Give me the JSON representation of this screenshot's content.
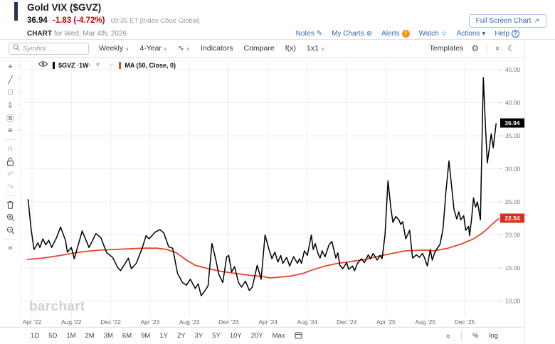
{
  "header": {
    "title": "Gold VIX ($GVZ)",
    "price": "36.94",
    "change": "-1.83 (-4.72%)",
    "meta": "09:35 ET [Index Cboe Global]",
    "chart_label": "CHART",
    "chart_for": "for Wed, Mar 4th, 2026",
    "full_screen_label": "Full Screen Chart",
    "full_screen_icon": "↗",
    "links": [
      {
        "label": "Notes",
        "icon": "✎",
        "style": "plain"
      },
      {
        "label": "My Charts",
        "icon": "⊕",
        "style": "plain"
      },
      {
        "label": "Alerts",
        "icon": "!",
        "style": "badge"
      },
      {
        "label": "Watch",
        "icon": "☆",
        "style": "plain"
      },
      {
        "label": "Actions",
        "icon": "▾",
        "style": "plain"
      },
      {
        "label": "Help",
        "icon": "?",
        "style": "circle"
      }
    ]
  },
  "toolbar": {
    "search_placeholder": "Symbol...",
    "frequency": "Weekly",
    "range": "4-Year",
    "chart_type_icon": "∿",
    "indicators": "Indicators",
    "compare": "Compare",
    "fx": "f(x)",
    "layout": "1x1",
    "templates": "Templates",
    "gear_icon": "⚙",
    "collapse_icon": "«",
    "moon_icon": "☾"
  },
  "sidebar_tools": [
    {
      "name": "crosshair-tool",
      "glyph": "⌖",
      "sub": true
    },
    {
      "name": "trendline-tool",
      "glyph": "╱",
      "sub": true
    },
    {
      "name": "shapes-tool",
      "glyph": "□",
      "sub": true
    },
    {
      "name": "arrow-annotation-tool",
      "glyph": "⇩",
      "sub": true
    },
    {
      "name": "text-annotation-tool",
      "glyph": "Ⓑ",
      "sub": true
    },
    {
      "name": "line-settings-tool",
      "glyph": "≡",
      "sub": true
    },
    {
      "divider": true
    },
    {
      "name": "magnet-tool",
      "glyph": "∩",
      "active": true
    },
    {
      "name": "lock-tool",
      "svg": "lock"
    },
    {
      "name": "undo-button",
      "glyph": "↶",
      "disabled": true
    },
    {
      "name": "redo-button",
      "glyph": "↷",
      "disabled": true
    },
    {
      "divider": true
    },
    {
      "name": "delete-drawings-button",
      "svg": "trash"
    },
    {
      "name": "zoom-in-button",
      "svg": "zoom-in"
    },
    {
      "name": "zoom-out-button",
      "svg": "zoom-out"
    },
    {
      "divider": true
    },
    {
      "name": "collapse-sidebar-button",
      "glyph": "«"
    }
  ],
  "legend": {
    "series1_label": "$GVZ ·1W·",
    "series2_label": "MA (50, Close, 0)",
    "dots": "⋯",
    "close": "×"
  },
  "watermark": "barchart",
  "period_buttons": [
    "1D",
    "5D",
    "1M",
    "2M",
    "3M",
    "6M",
    "9M",
    "1Y",
    "2Y",
    "3Y",
    "5Y",
    "10Y",
    "20Y",
    "Max"
  ],
  "bottom_right": {
    "percent": "%",
    "log": "log"
  },
  "colors": {
    "accent_navy": "#27335f",
    "red_change": "#c40000",
    "link_blue": "#3569ae",
    "alert_orange": "#f7941e",
    "series_black": "#000000",
    "series_red": "#e8432c",
    "badge_black": "#000000",
    "badge_red": "#da2f1d",
    "grid": "#ececec",
    "axis_text": "#777777",
    "magnet_active": "#5b6fd6"
  },
  "chart_data": {
    "type": "line",
    "title": "Gold VIX ($GVZ) weekly line with MA(50) overlay",
    "x_unit": "months since Apr 2022",
    "xlim": [
      -0.94,
      47.54
    ],
    "ylim": [
      7.8,
      46.3
    ],
    "grid": true,
    "y_ticks": [
      10,
      15,
      20,
      25,
      30,
      35,
      40,
      45
    ],
    "x_ticks": [
      {
        "m": 0,
        "label": "Apr '22"
      },
      {
        "m": 4,
        "label": "Aug '22"
      },
      {
        "m": 8,
        "label": "Dec '22"
      },
      {
        "m": 12,
        "label": "Apr '23"
      },
      {
        "m": 16,
        "label": "Aug '23"
      },
      {
        "m": 20,
        "label": "Dec '23"
      },
      {
        "m": 24,
        "label": "Apr '24"
      },
      {
        "m": 28,
        "label": "Aug '24"
      },
      {
        "m": 32,
        "label": "Dec '24"
      },
      {
        "m": 36,
        "label": "Apr '25"
      },
      {
        "m": 40,
        "label": "Aug '25"
      },
      {
        "m": 44,
        "label": "Dec '25"
      }
    ],
    "series": [
      {
        "name": "$GVZ weekly",
        "color": "#000000",
        "width": 1.5,
        "last_value": 36.94,
        "badge": {
          "text": "36.94",
          "bg": "#000000"
        },
        "points": [
          [
            -0.4,
            25.4
          ],
          [
            -0.1,
            21.0
          ],
          [
            0.2,
            17.8
          ],
          [
            0.6,
            18.8
          ],
          [
            0.8,
            18.1
          ],
          [
            1.1,
            19.4
          ],
          [
            1.4,
            18.5
          ],
          [
            1.7,
            19.2
          ],
          [
            2.0,
            18.1
          ],
          [
            2.5,
            19.6
          ],
          [
            2.9,
            21.2
          ],
          [
            3.4,
            19.2
          ],
          [
            3.6,
            17.4
          ],
          [
            4.0,
            18.1
          ],
          [
            4.3,
            16.4
          ],
          [
            5.1,
            20.6
          ],
          [
            5.8,
            18.1
          ],
          [
            6.5,
            20.2
          ],
          [
            7.0,
            19.6
          ],
          [
            7.6,
            17.3
          ],
          [
            8.2,
            16.6
          ],
          [
            8.7,
            15.1
          ],
          [
            9.0,
            14.6
          ],
          [
            9.4,
            15.5
          ],
          [
            9.8,
            16.5
          ],
          [
            10.1,
            14.9
          ],
          [
            10.6,
            15.7
          ],
          [
            11.2,
            18.0
          ],
          [
            11.6,
            19.9
          ],
          [
            11.9,
            19.4
          ],
          [
            12.5,
            20.4
          ],
          [
            13.0,
            20.8
          ],
          [
            13.4,
            20.3
          ],
          [
            13.9,
            18.2
          ],
          [
            14.3,
            18.0
          ],
          [
            14.8,
            14.2
          ],
          [
            15.3,
            12.8
          ],
          [
            15.7,
            12.4
          ],
          [
            16.1,
            13.3
          ],
          [
            16.6,
            11.9
          ],
          [
            16.9,
            12.6
          ],
          [
            17.2,
            10.8
          ],
          [
            17.6,
            11.6
          ],
          [
            17.9,
            12.3
          ],
          [
            18.3,
            18.7
          ],
          [
            18.7,
            16.2
          ],
          [
            19.0,
            14.0
          ],
          [
            19.4,
            12.8
          ],
          [
            19.8,
            16.7
          ],
          [
            20.0,
            16.9
          ],
          [
            20.3,
            14.4
          ],
          [
            20.6,
            15.2
          ],
          [
            21.0,
            12.8
          ],
          [
            21.3,
            12.1
          ],
          [
            21.7,
            13.0
          ],
          [
            22.1,
            11.6
          ],
          [
            22.4,
            12.1
          ],
          [
            22.9,
            15.4
          ],
          [
            23.3,
            13.3
          ],
          [
            23.7,
            20.0
          ],
          [
            24.1,
            17.8
          ],
          [
            24.4,
            16.4
          ],
          [
            24.7,
            17.4
          ],
          [
            25.0,
            15.9
          ],
          [
            25.3,
            16.9
          ],
          [
            25.5,
            15.7
          ],
          [
            25.9,
            16.6
          ],
          [
            26.2,
            15.3
          ],
          [
            26.6,
            16.7
          ],
          [
            27.0,
            15.7
          ],
          [
            27.2,
            16.4
          ],
          [
            27.4,
            15.7
          ],
          [
            27.7,
            17.6
          ],
          [
            28.0,
            16.9
          ],
          [
            28.4,
            20.0
          ],
          [
            28.6,
            17.8
          ],
          [
            28.8,
            18.7
          ],
          [
            29.1,
            17.1
          ],
          [
            29.3,
            16.5
          ],
          [
            29.5,
            17.6
          ],
          [
            29.8,
            16.7
          ],
          [
            30.2,
            18.5
          ],
          [
            30.5,
            19.0
          ],
          [
            30.9,
            16.5
          ],
          [
            31.1,
            17.3
          ],
          [
            31.3,
            15.4
          ],
          [
            31.6,
            14.9
          ],
          [
            32.0,
            15.8
          ],
          [
            32.2,
            14.8
          ],
          [
            32.6,
            15.3
          ],
          [
            32.8,
            14.6
          ],
          [
            33.1,
            15.7
          ],
          [
            33.5,
            16.4
          ],
          [
            33.8,
            15.8
          ],
          [
            34.2,
            17.0
          ],
          [
            34.4,
            16.4
          ],
          [
            34.7,
            17.2
          ],
          [
            35.1,
            16.2
          ],
          [
            35.4,
            16.9
          ],
          [
            35.6,
            16.4
          ],
          [
            35.9,
            20.0
          ],
          [
            36.2,
            28.2
          ],
          [
            36.5,
            24.0
          ],
          [
            36.7,
            21.9
          ],
          [
            37.0,
            22.8
          ],
          [
            37.3,
            22.3
          ],
          [
            37.5,
            21.6
          ],
          [
            37.7,
            22.0
          ],
          [
            38.0,
            19.4
          ],
          [
            38.4,
            20.7
          ],
          [
            38.7,
            16.5
          ],
          [
            39.1,
            17.0
          ],
          [
            39.4,
            16.6
          ],
          [
            39.7,
            17.2
          ],
          [
            39.9,
            16.6
          ],
          [
            40.2,
            15.3
          ],
          [
            40.5,
            17.8
          ],
          [
            40.7,
            16.2
          ],
          [
            41.0,
            17.5
          ],
          [
            41.5,
            18.6
          ],
          [
            41.8,
            21.0
          ],
          [
            42.1,
            26.7
          ],
          [
            42.4,
            31.2
          ],
          [
            42.8,
            25.5
          ],
          [
            42.9,
            23.9
          ],
          [
            43.2,
            22.4
          ],
          [
            43.4,
            23.5
          ],
          [
            43.6,
            22.3
          ],
          [
            43.9,
            22.9
          ],
          [
            44.1,
            20.7
          ],
          [
            44.4,
            21.3
          ],
          [
            44.5,
            19.9
          ],
          [
            44.7,
            22.5
          ],
          [
            44.9,
            25.6
          ],
          [
            45.1,
            24.2
          ],
          [
            45.3,
            25.0
          ],
          [
            45.6,
            22.3
          ],
          [
            45.7,
            30.0
          ],
          [
            45.9,
            43.8
          ],
          [
            46.1,
            36.8
          ],
          [
            46.3,
            30.9
          ],
          [
            46.7,
            35.3
          ],
          [
            46.9,
            33.2
          ],
          [
            47.2,
            36.9
          ]
        ]
      },
      {
        "name": "MA (50, Close, 0)",
        "color": "#e8432c",
        "width": 1.8,
        "last_value": 22.54,
        "badge": {
          "text": "22.54",
          "bg": "#da2f1d"
        },
        "points": [
          [
            -0.5,
            16.3
          ],
          [
            1.1,
            16.5
          ],
          [
            2.9,
            16.9
          ],
          [
            4.0,
            17.2
          ],
          [
            5.4,
            17.5
          ],
          [
            6.9,
            17.7
          ],
          [
            8.3,
            17.8
          ],
          [
            9.8,
            17.9
          ],
          [
            11.2,
            18.0
          ],
          [
            12.7,
            18.0
          ],
          [
            13.7,
            17.8
          ],
          [
            14.7,
            17.3
          ],
          [
            15.6,
            16.3
          ],
          [
            16.6,
            15.4
          ],
          [
            17.9,
            14.9
          ],
          [
            19.2,
            14.5
          ],
          [
            20.6,
            14.2
          ],
          [
            22.1,
            13.9
          ],
          [
            23.5,
            13.7
          ],
          [
            24.2,
            13.5
          ],
          [
            25.0,
            13.6
          ],
          [
            26.4,
            13.8
          ],
          [
            27.6,
            14.2
          ],
          [
            28.5,
            14.7
          ],
          [
            29.8,
            15.3
          ],
          [
            31.1,
            15.7
          ],
          [
            32.5,
            16.0
          ],
          [
            33.9,
            16.3
          ],
          [
            35.3,
            16.8
          ],
          [
            36.6,
            17.2
          ],
          [
            38.0,
            17.6
          ],
          [
            39.8,
            17.7
          ],
          [
            40.9,
            17.6
          ],
          [
            42.3,
            18.0
          ],
          [
            43.8,
            18.7
          ],
          [
            44.9,
            19.4
          ],
          [
            45.8,
            20.3
          ],
          [
            46.5,
            21.2
          ],
          [
            47.0,
            21.9
          ],
          [
            47.5,
            22.5
          ]
        ]
      }
    ]
  }
}
